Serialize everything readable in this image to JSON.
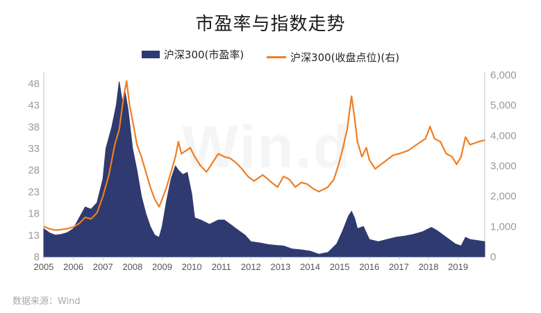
{
  "title": "市盈率与指数走势",
  "source": "数据来源：Wind",
  "watermark": "Win.d",
  "chart_data": {
    "type": "area+line",
    "title": "市盈率与指数走势",
    "legend_position": "top-center",
    "grid": false,
    "x_ticks": [
      "2005",
      "2006",
      "2007",
      "2008",
      "2009",
      "2010",
      "2011",
      "2012",
      "2013",
      "2014",
      "2015",
      "2016",
      "2017",
      "2018",
      "2019"
    ],
    "xlim": [
      2005.0,
      2019.9
    ],
    "left_axis": {
      "ylim": [
        8,
        50
      ],
      "ticks": [
        8,
        13,
        18,
        23,
        28,
        33,
        38,
        43,
        48
      ]
    },
    "right_axis": {
      "ylim": [
        0,
        6000
      ],
      "ticks": [
        "0",
        "1,000",
        "2,000",
        "3,000",
        "4,000",
        "5,000",
        "6,000"
      ]
    },
    "series": [
      {
        "name": "沪深300(市盈率)",
        "axis": "left",
        "style": "area",
        "color": "#2f3a70",
        "points": [
          [
            2005.0,
            14.5
          ],
          [
            2005.2,
            13.5
          ],
          [
            2005.4,
            13.0
          ],
          [
            2005.6,
            13.2
          ],
          [
            2005.8,
            13.6
          ],
          [
            2006.0,
            14.5
          ],
          [
            2006.2,
            17.0
          ],
          [
            2006.4,
            19.5
          ],
          [
            2006.6,
            19.0
          ],
          [
            2006.8,
            20.5
          ],
          [
            2007.0,
            26.0
          ],
          [
            2007.1,
            33.0
          ],
          [
            2007.3,
            38.0
          ],
          [
            2007.45,
            43.0
          ],
          [
            2007.55,
            48.5
          ],
          [
            2007.65,
            44.0
          ],
          [
            2007.75,
            46.0
          ],
          [
            2007.85,
            42.0
          ],
          [
            2008.0,
            33.0
          ],
          [
            2008.15,
            28.0
          ],
          [
            2008.3,
            22.0
          ],
          [
            2008.45,
            18.0
          ],
          [
            2008.6,
            15.0
          ],
          [
            2008.75,
            13.0
          ],
          [
            2008.9,
            12.5
          ],
          [
            2009.0,
            15.0
          ],
          [
            2009.15,
            21.0
          ],
          [
            2009.3,
            26.0
          ],
          [
            2009.45,
            29.0
          ],
          [
            2009.55,
            28.0
          ],
          [
            2009.7,
            27.0
          ],
          [
            2009.85,
            27.5
          ],
          [
            2010.0,
            22.5
          ],
          [
            2010.1,
            17.0
          ],
          [
            2010.3,
            16.5
          ],
          [
            2010.6,
            15.5
          ],
          [
            2010.9,
            16.5
          ],
          [
            2011.1,
            16.5
          ],
          [
            2011.3,
            15.5
          ],
          [
            2011.5,
            14.5
          ],
          [
            2011.8,
            13.0
          ],
          [
            2012.0,
            11.5
          ],
          [
            2012.3,
            11.2
          ],
          [
            2012.6,
            10.8
          ],
          [
            2012.9,
            10.6
          ],
          [
            2013.1,
            10.5
          ],
          [
            2013.4,
            9.8
          ],
          [
            2013.7,
            9.6
          ],
          [
            2014.0,
            9.3
          ],
          [
            2014.3,
            8.6
          ],
          [
            2014.6,
            9.0
          ],
          [
            2014.9,
            11.0
          ],
          [
            2015.1,
            14.0
          ],
          [
            2015.3,
            17.5
          ],
          [
            2015.4,
            18.5
          ],
          [
            2015.5,
            17.0
          ],
          [
            2015.6,
            14.5
          ],
          [
            2015.8,
            15.0
          ],
          [
            2016.0,
            12.0
          ],
          [
            2016.3,
            11.5
          ],
          [
            2016.6,
            12.0
          ],
          [
            2016.9,
            12.5
          ],
          [
            2017.2,
            12.8
          ],
          [
            2017.5,
            13.2
          ],
          [
            2017.8,
            13.8
          ],
          [
            2018.1,
            14.8
          ],
          [
            2018.3,
            14.0
          ],
          [
            2018.6,
            12.5
          ],
          [
            2018.9,
            11.0
          ],
          [
            2019.1,
            10.5
          ],
          [
            2019.25,
            12.5
          ],
          [
            2019.4,
            12.0
          ],
          [
            2019.6,
            11.8
          ],
          [
            2019.9,
            11.5
          ]
        ]
      },
      {
        "name": "沪深300(收盘点位)(右)",
        "axis": "right",
        "style": "line",
        "color": "#ef7d22",
        "points": [
          [
            2005.0,
            1000
          ],
          [
            2005.2,
            920
          ],
          [
            2005.4,
            880
          ],
          [
            2005.6,
            900
          ],
          [
            2005.8,
            930
          ],
          [
            2006.0,
            980
          ],
          [
            2006.2,
            1100
          ],
          [
            2006.4,
            1300
          ],
          [
            2006.6,
            1250
          ],
          [
            2006.8,
            1450
          ],
          [
            2007.0,
            2000
          ],
          [
            2007.2,
            2700
          ],
          [
            2007.4,
            3700
          ],
          [
            2007.55,
            4200
          ],
          [
            2007.7,
            5300
          ],
          [
            2007.8,
            5800
          ],
          [
            2007.9,
            5000
          ],
          [
            2008.0,
            4500
          ],
          [
            2008.15,
            3700
          ],
          [
            2008.3,
            3300
          ],
          [
            2008.45,
            2800
          ],
          [
            2008.6,
            2300
          ],
          [
            2008.75,
            1900
          ],
          [
            2008.9,
            1650
          ],
          [
            2009.0,
            1900
          ],
          [
            2009.15,
            2300
          ],
          [
            2009.3,
            2800
          ],
          [
            2009.45,
            3300
          ],
          [
            2009.55,
            3800
          ],
          [
            2009.65,
            3400
          ],
          [
            2009.8,
            3500
          ],
          [
            2009.95,
            3600
          ],
          [
            2010.1,
            3300
          ],
          [
            2010.3,
            3000
          ],
          [
            2010.5,
            2800
          ],
          [
            2010.7,
            3100
          ],
          [
            2010.9,
            3400
          ],
          [
            2011.1,
            3300
          ],
          [
            2011.3,
            3250
          ],
          [
            2011.5,
            3100
          ],
          [
            2011.7,
            2900
          ],
          [
            2011.9,
            2650
          ],
          [
            2012.1,
            2500
          ],
          [
            2012.4,
            2700
          ],
          [
            2012.7,
            2450
          ],
          [
            2012.9,
            2300
          ],
          [
            2013.1,
            2650
          ],
          [
            2013.3,
            2550
          ],
          [
            2013.5,
            2300
          ],
          [
            2013.7,
            2450
          ],
          [
            2013.9,
            2400
          ],
          [
            2014.1,
            2250
          ],
          [
            2014.3,
            2150
          ],
          [
            2014.6,
            2300
          ],
          [
            2014.8,
            2550
          ],
          [
            2014.95,
            3000
          ],
          [
            2015.1,
            3550
          ],
          [
            2015.25,
            4200
          ],
          [
            2015.4,
            5300
          ],
          [
            2015.5,
            4600
          ],
          [
            2015.6,
            3800
          ],
          [
            2015.75,
            3300
          ],
          [
            2015.9,
            3600
          ],
          [
            2016.0,
            3200
          ],
          [
            2016.2,
            2900
          ],
          [
            2016.4,
            3050
          ],
          [
            2016.6,
            3200
          ],
          [
            2016.8,
            3350
          ],
          [
            2017.0,
            3400
          ],
          [
            2017.3,
            3500
          ],
          [
            2017.6,
            3700
          ],
          [
            2017.9,
            3900
          ],
          [
            2018.05,
            4300
          ],
          [
            2018.2,
            3900
          ],
          [
            2018.4,
            3800
          ],
          [
            2018.6,
            3400
          ],
          [
            2018.8,
            3300
          ],
          [
            2018.95,
            3050
          ],
          [
            2019.1,
            3300
          ],
          [
            2019.25,
            3950
          ],
          [
            2019.4,
            3700
          ],
          [
            2019.55,
            3750
          ],
          [
            2019.7,
            3800
          ],
          [
            2019.9,
            3850
          ]
        ]
      }
    ]
  }
}
